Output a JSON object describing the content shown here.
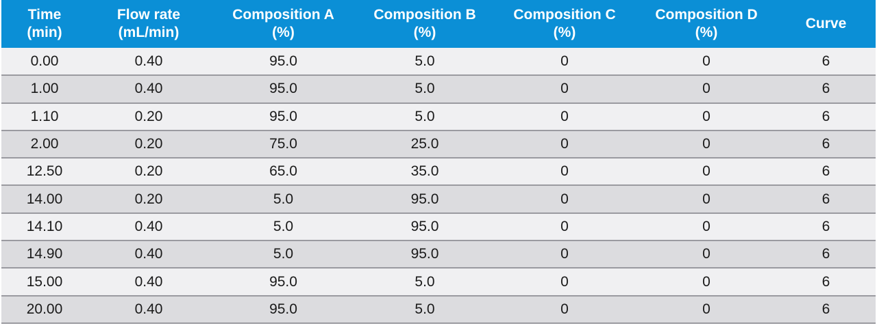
{
  "table": {
    "headers": [
      {
        "line1": "Time",
        "line2": "(min)"
      },
      {
        "line1": "Flow rate",
        "line2": "(mL/min)"
      },
      {
        "line1": "Composition A",
        "line2": "(%)"
      },
      {
        "line1": "Composition B",
        "line2": "(%)"
      },
      {
        "line1": "Composition C",
        "line2": "(%)"
      },
      {
        "line1": "Composition D",
        "line2": "(%)"
      },
      {
        "line1": "Curve",
        "line2": ""
      }
    ],
    "rows": [
      [
        "0.00",
        "0.40",
        "95.0",
        "5.0",
        "0",
        "0",
        "6"
      ],
      [
        "1.00",
        "0.40",
        "95.0",
        "5.0",
        "0",
        "0",
        "6"
      ],
      [
        "1.10",
        "0.20",
        "95.0",
        "5.0",
        "0",
        "0",
        "6"
      ],
      [
        "2.00",
        "0.20",
        "75.0",
        "25.0",
        "0",
        "0",
        "6"
      ],
      [
        "12.50",
        "0.20",
        "65.0",
        "35.0",
        "0",
        "0",
        "6"
      ],
      [
        "14.00",
        "0.20",
        "5.0",
        "95.0",
        "0",
        "0",
        "6"
      ],
      [
        "14.10",
        "0.40",
        "5.0",
        "95.0",
        "0",
        "0",
        "6"
      ],
      [
        "14.90",
        "0.40",
        "5.0",
        "95.0",
        "0",
        "0",
        "6"
      ],
      [
        "15.00",
        "0.40",
        "95.0",
        "5.0",
        "0",
        "0",
        "6"
      ],
      [
        "20.00",
        "0.40",
        "95.0",
        "5.0",
        "0",
        "0",
        "6"
      ]
    ]
  },
  "colors": {
    "header_bg": "#0b8fd6",
    "header_text": "#ffffff",
    "row_light": "#f0f0f2",
    "row_dark": "#dcdcdf",
    "row_border": "#9a9aa0"
  }
}
